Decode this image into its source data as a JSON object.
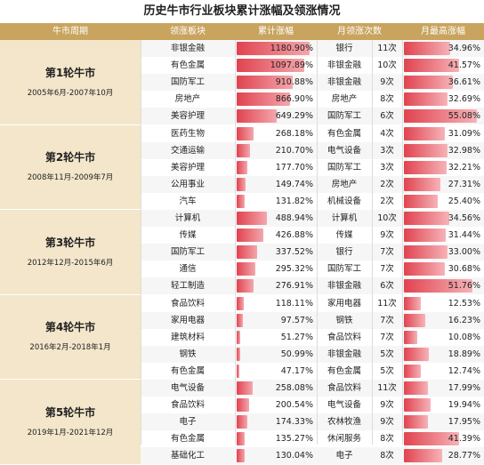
{
  "title": "历史牛市行业板块累计涨幅及领涨情况",
  "headers": {
    "period": "牛市周期",
    "sector": "领涨板块",
    "gain": "累计涨幅",
    "lead": "月领涨次数",
    "max": "月最高涨幅"
  },
  "colors": {
    "header": "#c9a45f",
    "group_bg": "#f3e6ca",
    "bar": "#e0434f"
  },
  "groups": [
    {
      "name": "第1轮牛市",
      "period": "2005年6月-2007年10月",
      "rows": [
        {
          "sector": "非银金融",
          "gain": "1180.90%",
          "gain_value": 1180.9,
          "lead_sector": "银行",
          "lead_count": "11次",
          "max_gain": "34.96%",
          "max_value": 34.96
        },
        {
          "sector": "有色金属",
          "gain": "1097.89%",
          "gain_value": 1097.89,
          "lead_sector": "非银金融",
          "lead_count": "10次",
          "max_gain": "41.57%",
          "max_value": 41.57
        },
        {
          "sector": "国防军工",
          "gain": "910.88%",
          "gain_value": 910.88,
          "lead_sector": "非银金融",
          "lead_count": "9次",
          "max_gain": "36.61%",
          "max_value": 36.61
        },
        {
          "sector": "房地产",
          "gain": "866.90%",
          "gain_value": 866.9,
          "lead_sector": "房地产",
          "lead_count": "8次",
          "max_gain": "32.69%",
          "max_value": 32.69
        },
        {
          "sector": "美容护理",
          "gain": "649.29%",
          "gain_value": 649.29,
          "lead_sector": "国防军工",
          "lead_count": "6次",
          "max_gain": "55.08%",
          "max_value": 55.08
        }
      ]
    },
    {
      "name": "第2轮牛市",
      "period": "2008年11月-2009年7月",
      "rows": [
        {
          "sector": "医药生物",
          "gain": "268.18%",
          "gain_value": 268.18,
          "lead_sector": "有色金属",
          "lead_count": "4次",
          "max_gain": "31.09%",
          "max_value": 31.09
        },
        {
          "sector": "交通运输",
          "gain": "210.70%",
          "gain_value": 210.7,
          "lead_sector": "电气设备",
          "lead_count": "3次",
          "max_gain": "32.98%",
          "max_value": 32.98
        },
        {
          "sector": "美容护理",
          "gain": "177.70%",
          "gain_value": 177.7,
          "lead_sector": "国防军工",
          "lead_count": "3次",
          "max_gain": "32.21%",
          "max_value": 32.21
        },
        {
          "sector": "公用事业",
          "gain": "149.74%",
          "gain_value": 149.74,
          "lead_sector": "房地产",
          "lead_count": "2次",
          "max_gain": "27.31%",
          "max_value": 27.31
        },
        {
          "sector": "汽车",
          "gain": "131.82%",
          "gain_value": 131.82,
          "lead_sector": "机械设备",
          "lead_count": "2次",
          "max_gain": "25.40%",
          "max_value": 25.4
        }
      ]
    },
    {
      "name": "第3轮牛市",
      "period": "2012年12月-2015年6月",
      "rows": [
        {
          "sector": "计算机",
          "gain": "488.94%",
          "gain_value": 488.94,
          "lead_sector": "计算机",
          "lead_count": "10次",
          "max_gain": "34.56%",
          "max_value": 34.56
        },
        {
          "sector": "传媒",
          "gain": "426.88%",
          "gain_value": 426.88,
          "lead_sector": "传媒",
          "lead_count": "9次",
          "max_gain": "31.44%",
          "max_value": 31.44
        },
        {
          "sector": "国防军工",
          "gain": "337.52%",
          "gain_value": 337.52,
          "lead_sector": "银行",
          "lead_count": "7次",
          "max_gain": "33.00%",
          "max_value": 33.0
        },
        {
          "sector": "通信",
          "gain": "295.32%",
          "gain_value": 295.32,
          "lead_sector": "国防军工",
          "lead_count": "7次",
          "max_gain": "30.68%",
          "max_value": 30.68
        },
        {
          "sector": "轻工制造",
          "gain": "276.91%",
          "gain_value": 276.91,
          "lead_sector": "非银金融",
          "lead_count": "6次",
          "max_gain": "51.76%",
          "max_value": 51.76
        }
      ]
    },
    {
      "name": "第4轮牛市",
      "period": "2016年2月-2018年1月",
      "rows": [
        {
          "sector": "食品饮料",
          "gain": "118.11%",
          "gain_value": 118.11,
          "lead_sector": "家用电器",
          "lead_count": "11次",
          "max_gain": "12.53%",
          "max_value": 12.53
        },
        {
          "sector": "家用电器",
          "gain": "97.57%",
          "gain_value": 97.57,
          "lead_sector": "钢铁",
          "lead_count": "7次",
          "max_gain": "16.23%",
          "max_value": 16.23
        },
        {
          "sector": "建筑材料",
          "gain": "51.27%",
          "gain_value": 51.27,
          "lead_sector": "食品饮料",
          "lead_count": "7次",
          "max_gain": "10.08%",
          "max_value": 10.08
        },
        {
          "sector": "钢铁",
          "gain": "50.99%",
          "gain_value": 50.99,
          "lead_sector": "非银金融",
          "lead_count": "5次",
          "max_gain": "18.89%",
          "max_value": 18.89
        },
        {
          "sector": "有色金属",
          "gain": "47.17%",
          "gain_value": 47.17,
          "lead_sector": "有色金属",
          "lead_count": "5次",
          "max_gain": "12.74%",
          "max_value": 12.74
        }
      ]
    },
    {
      "name": "第5轮牛市",
      "period": "2019年1月-2021年12月",
      "rows": [
        {
          "sector": "电气设备",
          "gain": "258.08%",
          "gain_value": 258.08,
          "lead_sector": "食品饮料",
          "lead_count": "11次",
          "max_gain": "17.99%",
          "max_value": 17.99
        },
        {
          "sector": "食品饮料",
          "gain": "200.54%",
          "gain_value": 200.54,
          "lead_sector": "电气设备",
          "lead_count": "9次",
          "max_gain": "19.94%",
          "max_value": 19.94
        },
        {
          "sector": "电子",
          "gain": "174.33%",
          "gain_value": 174.33,
          "lead_sector": "农林牧渔",
          "lead_count": "9次",
          "max_gain": "17.95%",
          "max_value": 17.95
        },
        {
          "sector": "有色金属",
          "gain": "135.27%",
          "gain_value": 135.27,
          "lead_sector": "休闲服务",
          "lead_count": "8次",
          "max_gain": "41.39%",
          "max_value": 41.39
        },
        {
          "sector": "基础化工",
          "gain": "130.04%",
          "gain_value": 130.04,
          "lead_sector": "电子",
          "lead_count": "8次",
          "max_gain": "28.77%",
          "max_value": 28.77
        }
      ]
    }
  ]
}
